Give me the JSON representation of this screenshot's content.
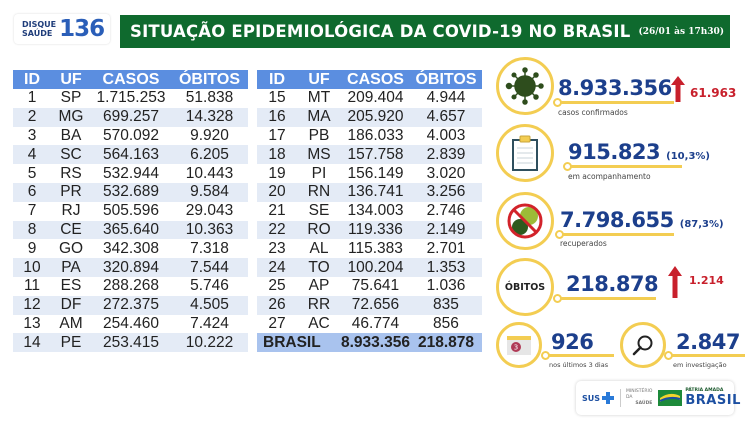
{
  "header": {
    "hotline_label_line1": "DISQUE",
    "hotline_label_line2": "SAÚDE",
    "hotline_number": "136",
    "title": "SITUAÇÃO EPIDEMIOLÓGICA DA COVID-19 NO BRASIL",
    "date": "(26/01 às 17h30)"
  },
  "table": {
    "columns": [
      "ID",
      "UF",
      "CASOS",
      "ÓBITOS"
    ],
    "left_rows": [
      [
        "1",
        "SP",
        "1.715.253",
        "51.838"
      ],
      [
        "2",
        "MG",
        "699.257",
        "14.328"
      ],
      [
        "3",
        "BA",
        "570.092",
        "9.920"
      ],
      [
        "4",
        "SC",
        "564.163",
        "6.205"
      ],
      [
        "5",
        "RS",
        "532.944",
        "10.443"
      ],
      [
        "6",
        "PR",
        "532.689",
        "9.584"
      ],
      [
        "7",
        "RJ",
        "505.596",
        "29.043"
      ],
      [
        "8",
        "CE",
        "365.640",
        "10.363"
      ],
      [
        "9",
        "GO",
        "342.308",
        "7.318"
      ],
      [
        "10",
        "PA",
        "320.894",
        "7.544"
      ],
      [
        "11",
        "ES",
        "288.268",
        "5.746"
      ],
      [
        "12",
        "DF",
        "272.375",
        "4.505"
      ],
      [
        "13",
        "AM",
        "254.460",
        "7.424"
      ],
      [
        "14",
        "PE",
        "253.415",
        "10.222"
      ]
    ],
    "right_rows": [
      [
        "15",
        "MT",
        "209.404",
        "4.944"
      ],
      [
        "16",
        "MA",
        "205.920",
        "4.657"
      ],
      [
        "17",
        "PB",
        "186.033",
        "4.003"
      ],
      [
        "18",
        "MS",
        "157.758",
        "2.839"
      ],
      [
        "19",
        "PI",
        "156.149",
        "3.020"
      ],
      [
        "20",
        "RN",
        "136.741",
        "3.256"
      ],
      [
        "21",
        "SE",
        "134.003",
        "2.746"
      ],
      [
        "22",
        "RO",
        "119.336",
        "2.149"
      ],
      [
        "23",
        "AL",
        "115.383",
        "2.701"
      ],
      [
        "24",
        "TO",
        "100.204",
        "1.353"
      ],
      [
        "25",
        "AP",
        "75.641",
        "1.036"
      ],
      [
        "26",
        "RR",
        "72.656",
        "835"
      ],
      [
        "27",
        "AC",
        "46.774",
        "856"
      ]
    ],
    "total": {
      "label": "BRASIL",
      "casos": "8.933.356",
      "obitos": "218.878"
    }
  },
  "stats": {
    "confirmed": {
      "value": "8.933.356",
      "delta": "61.963",
      "label": "casos confirmados",
      "icon": "virus-icon"
    },
    "monitoring": {
      "value": "915.823",
      "pct": "(10,3%)",
      "label": "em acompanhamento",
      "icon": "clipboard-icon"
    },
    "recovered": {
      "value": "7.798.655",
      "pct": "(87,3%)",
      "label": "recuperados",
      "icon": "no-virus-icon"
    },
    "deaths": {
      "badge": "ÓBITOS",
      "value": "218.878",
      "delta": "1.214"
    },
    "last3days": {
      "value": "926",
      "label": "nos últimos 3 dias",
      "calendar_number": "3",
      "icon": "calendar-icon"
    },
    "investigation": {
      "value": "2.847",
      "label": "em investigação",
      "icon": "magnifier-icon"
    }
  },
  "footer": {
    "sus": "SUS",
    "ministry_line1": "MINISTÉRIO DA",
    "ministry_line2": "SAÚDE",
    "brasil_slogan": "PÁTRIA AMADA",
    "brasil": "BRASIL"
  },
  "colors": {
    "title_green": "#0f6a2e",
    "table_header_blue": "#5b8ee0",
    "row_alt": "#e4ebf6",
    "total_row": "#a9c3ee",
    "number_blue": "#1c3f8c",
    "accent_yellow": "#f3cd52",
    "delta_red": "#c8202c"
  }
}
